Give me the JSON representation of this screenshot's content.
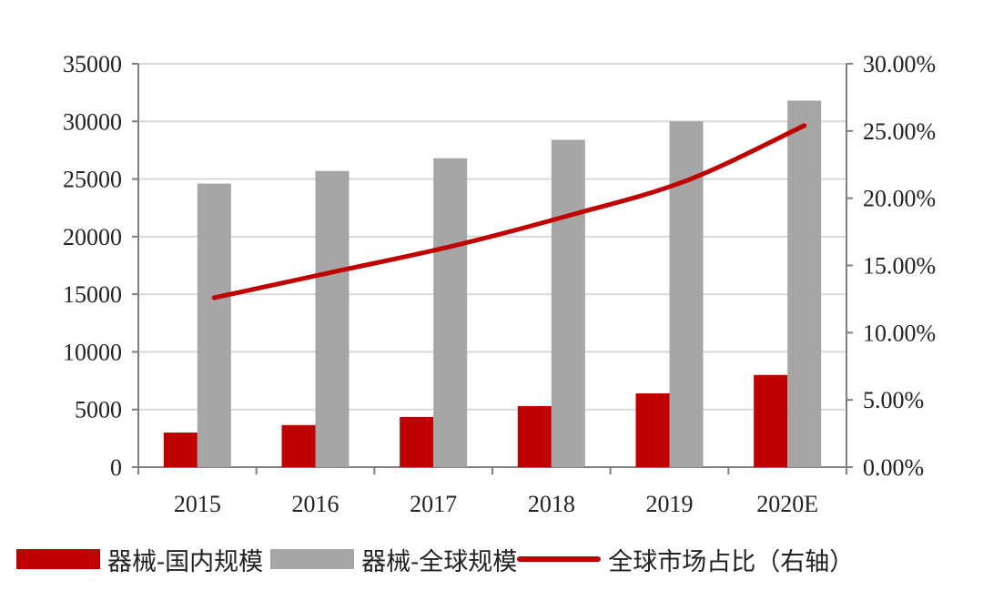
{
  "colors": {
    "domestic": "#c00000",
    "global": "#a6a6a6",
    "share": "#c00000",
    "grid": "#d9d9d9",
    "axis": "#7f7f7f"
  },
  "legend": {
    "domestic": "器械-国内规模",
    "global": "器械-全球规模",
    "share": "全球市场占比（右轴）"
  },
  "chart_data": {
    "type": "bar",
    "categories": [
      "2015",
      "2016",
      "2017",
      "2018",
      "2019",
      "2020E"
    ],
    "series": [
      {
        "name": "器械-国内规模",
        "type": "bar",
        "axis": "left",
        "values": [
          3000,
          3650,
          4350,
          5300,
          6400,
          8000
        ]
      },
      {
        "name": "器械-全球规模",
        "type": "bar",
        "axis": "left",
        "values": [
          24600,
          25700,
          26800,
          28400,
          30000,
          31800
        ]
      },
      {
        "name": "全球市场占比（右轴）",
        "type": "line",
        "axis": "right",
        "values": [
          12.6,
          14.5,
          16.4,
          18.7,
          21.3,
          25.4
        ]
      }
    ],
    "y_left": {
      "min": 0,
      "max": 35000,
      "ticks": [
        "0",
        "5000",
        "10000",
        "15000",
        "20000",
        "25000",
        "30000",
        "35000"
      ]
    },
    "y_right": {
      "min": 0,
      "max": 30,
      "ticks": [
        "0.00%",
        "5.00%",
        "10.00%",
        "15.00%",
        "20.00%",
        "25.00%",
        "30.00%"
      ]
    },
    "grid": true,
    "legend_position": "bottom"
  }
}
